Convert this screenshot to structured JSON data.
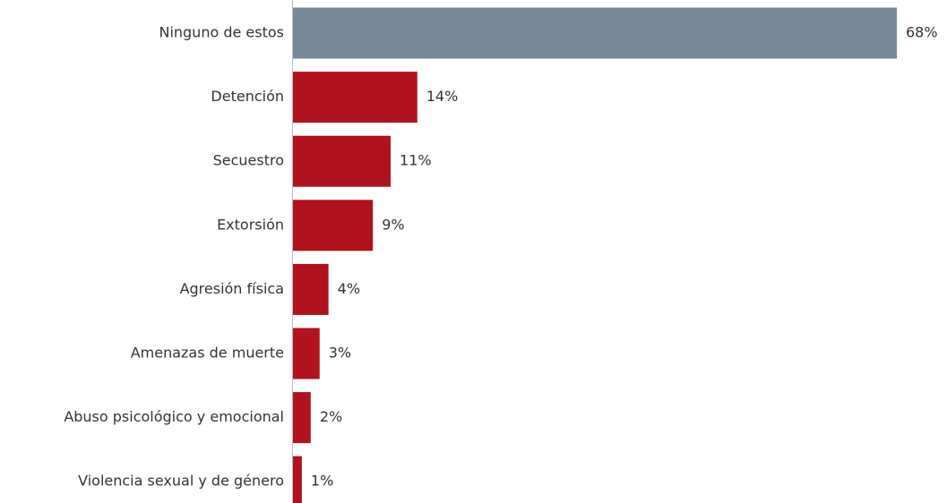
{
  "chart_data": {
    "type": "hbar",
    "categories": [
      "Ninguno de estos",
      "Detención",
      "Secuestro",
      "Extorsión",
      "Agresión física",
      "Amenazas de muerte",
      "Abuso psicológico y emocional",
      "Violencia sexual y de género"
    ],
    "values": [
      68,
      14,
      11,
      9,
      4,
      3,
      2,
      1
    ],
    "value_labels": [
      "68%",
      "14%",
      "11%",
      "9%",
      "4%",
      "3%",
      "2%",
      "1%"
    ],
    "colors": [
      "#778899",
      "#b0121e",
      "#b0121e",
      "#b0121e",
      "#b0121e",
      "#b0121e",
      "#b0121e",
      "#b0121e"
    ]
  }
}
